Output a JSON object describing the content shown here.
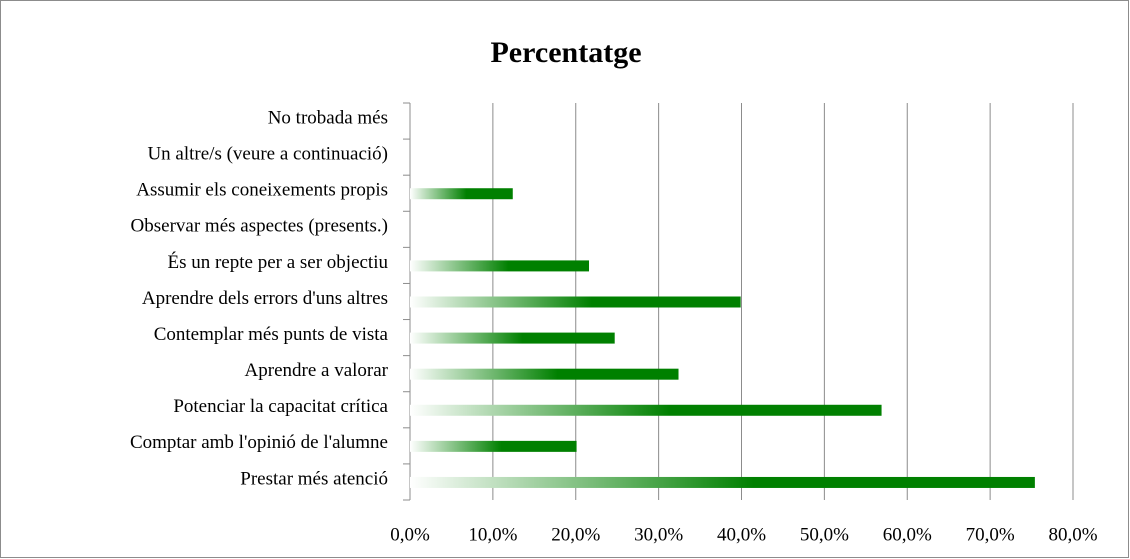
{
  "chart_data": {
    "type": "barh",
    "title": "Percentatge",
    "categories": [
      "Prestar més atenció",
      "Comptar amb l'opinió de l'alumne",
      "Potenciar la capacitat crítica",
      "Aprendre a valorar",
      "Contemplar més punts de vista",
      "Aprendre dels errors d'uns altres",
      "És un repte per a ser objectiu",
      "Observar més aspectes (presents.)",
      "Assumir els coneixements propis",
      "Un altre/s (veure a continuació)",
      "No trobada més"
    ],
    "values": [
      75.4,
      20.1,
      56.9,
      32.4,
      24.7,
      39.9,
      21.6,
      0,
      12.4,
      0,
      0
    ],
    "color": "#008000",
    "xlim": [
      0,
      80
    ],
    "xticks": [
      {
        "value": 0,
        "label": "0,0%"
      },
      {
        "value": 10,
        "label": "10,0%"
      },
      {
        "value": 20,
        "label": "20,0%"
      },
      {
        "value": 30,
        "label": "30,0%"
      },
      {
        "value": 40,
        "label": "40,0%"
      },
      {
        "value": 50,
        "label": "50,0%"
      },
      {
        "value": 60,
        "label": "60,0%"
      },
      {
        "value": 70,
        "label": "70,0%"
      },
      {
        "value": 80,
        "label": "80,0%"
      }
    ],
    "grid": true
  }
}
